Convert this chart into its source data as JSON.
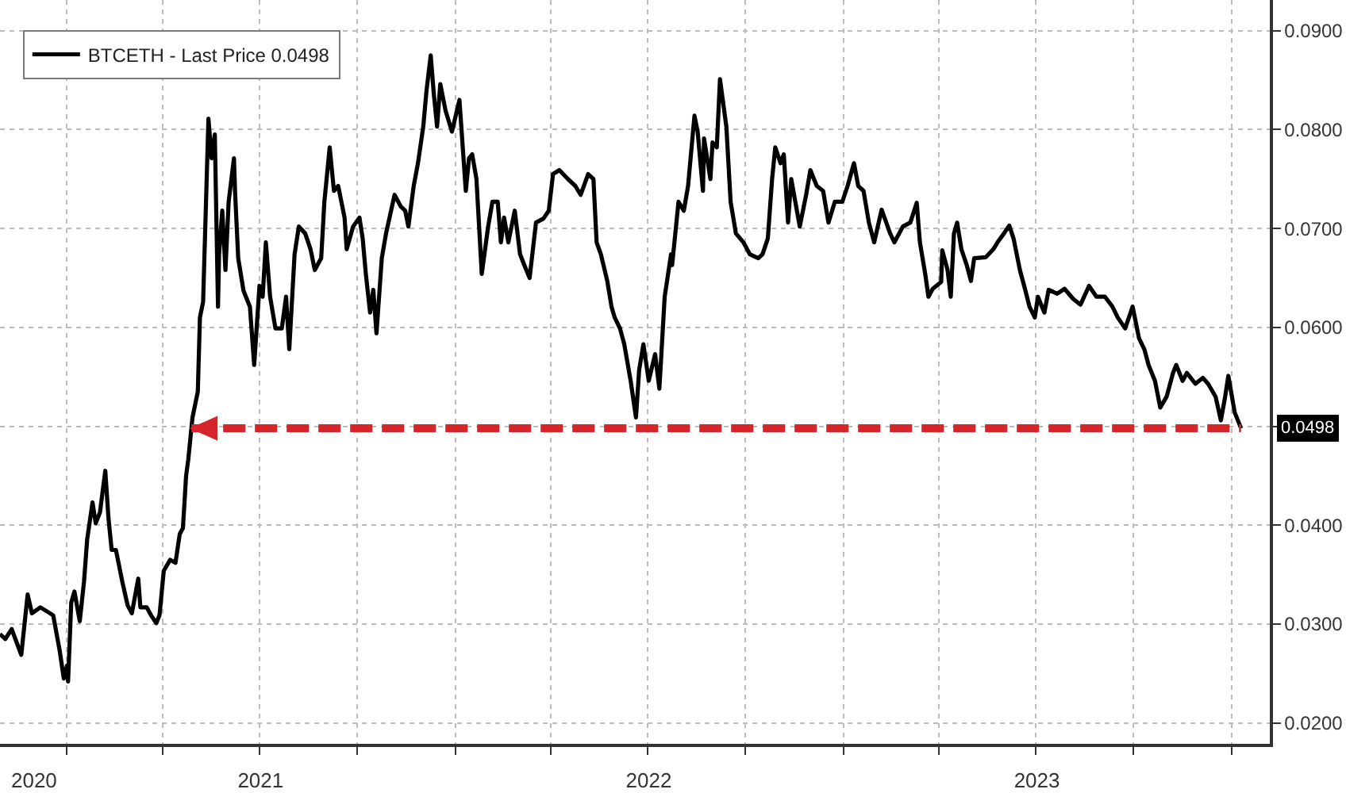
{
  "chart_data": {
    "type": "line",
    "series": [
      {
        "name": "BTCETH - Last Price 0.0498",
        "color": "#000000",
        "x": [
          "2020-10-30",
          "2020-11-04",
          "2020-11-10",
          "2020-11-19",
          "2020-11-25",
          "2020-11-29",
          "2020-12-07",
          "2020-12-19",
          "2020-12-25",
          "2020-12-29",
          "2021-01-01",
          "2021-01-02",
          "2021-01-05",
          "2021-01-08",
          "2021-01-13",
          "2021-01-17",
          "2021-01-20",
          "2021-01-25",
          "2021-01-28",
          "2021-02-01",
          "2021-02-06",
          "2021-02-09",
          "2021-02-12",
          "2021-02-16",
          "2021-02-22",
          "2021-02-27",
          "2021-03-03",
          "2021-03-09",
          "2021-03-11",
          "2021-03-17",
          "2021-03-21",
          "2021-03-26",
          "2021-03-29",
          "2021-04-02",
          "2021-04-08",
          "2021-04-13",
          "2021-04-17",
          "2021-04-20",
          "2021-04-23",
          "2021-04-25",
          "2021-04-29",
          "2021-05-04",
          "2021-05-06",
          "2021-05-09",
          "2021-05-14",
          "2021-05-17",
          "2021-05-20",
          "2021-05-23",
          "2021-05-24",
          "2021-05-27",
          "2021-05-30",
          "2021-06-02",
          "2021-06-07",
          "2021-06-08",
          "2021-06-11",
          "2021-06-16",
          "2021-06-22",
          "2021-06-26",
          "2021-07-01",
          "2021-07-04",
          "2021-07-07",
          "2021-07-11",
          "2021-07-16",
          "2021-07-22",
          "2021-07-26",
          "2021-07-29",
          "2021-08-03",
          "2021-08-07",
          "2021-08-13",
          "2021-08-18",
          "2021-08-22",
          "2021-08-28",
          "2021-08-31",
          "2021-09-05",
          "2021-09-09",
          "2021-09-13",
          "2021-09-19",
          "2021-09-21",
          "2021-09-27",
          "2021-10-03",
          "2021-10-06",
          "2021-10-09",
          "2021-10-13",
          "2021-10-16",
          "2021-10-19",
          "2021-10-24",
          "2021-10-28",
          "2021-11-05",
          "2021-11-11",
          "2021-11-15",
          "2021-11-18",
          "2021-11-23",
          "2021-11-27",
          "2021-12-02",
          "2021-12-05",
          "2021-12-09",
          "2021-12-12",
          "2021-12-15",
          "2021-12-18",
          "2021-12-23",
          "2021-12-29",
          "2022-01-05",
          "2022-01-11",
          "2022-01-14",
          "2022-01-17",
          "2022-01-21",
          "2022-01-26",
          "2022-02-01",
          "2022-02-05",
          "2022-02-10",
          "2022-02-13",
          "2022-02-16",
          "2022-02-20",
          "2022-02-26",
          "2022-03-03",
          "2022-03-07",
          "2022-03-12",
          "2022-03-18",
          "2022-03-25",
          "2022-03-30",
          "2022-04-03",
          "2022-04-09",
          "2022-04-17",
          "2022-04-24",
          "2022-04-29",
          "2022-05-06",
          "2022-05-11",
          "2022-05-14",
          "2022-05-18",
          "2022-05-24",
          "2022-05-28",
          "2022-05-31",
          "2022-06-05",
          "2022-06-09",
          "2022-06-15",
          "2022-06-20",
          "2022-06-23",
          "2022-06-27",
          "2022-07-02",
          "2022-07-08",
          "2022-07-12",
          "2022-07-17",
          "2022-07-23",
          "2022-07-24",
          "2022-07-30",
          "2022-08-04",
          "2022-08-08",
          "2022-08-14",
          "2022-08-17",
          "2022-08-22",
          "2022-08-23",
          "2022-08-29",
          "2022-08-31",
          "2022-09-04",
          "2022-09-07",
          "2022-09-13",
          "2022-09-17",
          "2022-09-22",
          "2022-09-29",
          "2022-10-05",
          "2022-10-13",
          "2022-10-17",
          "2022-10-22",
          "2022-10-26",
          "2022-10-29",
          "2022-11-03",
          "2022-11-06",
          "2022-11-10",
          "2022-11-13",
          "2022-11-21",
          "2022-11-27",
          "2022-12-01",
          "2022-12-07",
          "2022-12-13",
          "2022-12-18",
          "2022-12-24",
          "2022-12-31",
          "2023-01-05",
          "2023-01-11",
          "2023-01-15",
          "2023-01-20",
          "2023-01-25",
          "2023-01-30",
          "2023-02-06",
          "2023-02-14",
          "2023-02-18",
          "2023-02-26",
          "2023-03-05",
          "2023-03-11",
          "2023-03-14",
          "2023-03-19",
          "2023-03-22",
          "2023-03-26",
          "2023-04-03",
          "2023-04-04",
          "2023-04-09",
          "2023-04-12",
          "2023-04-15",
          "2023-04-18",
          "2023-04-22",
          "2023-04-27",
          "2023-05-01",
          "2023-05-04",
          "2023-05-15",
          "2023-05-22",
          "2023-05-26",
          "2023-06-01",
          "2023-06-06",
          "2023-06-10",
          "2023-06-16",
          "2023-06-21",
          "2023-06-25",
          "2023-06-30",
          "2023-07-03",
          "2023-07-09",
          "2023-07-13",
          "2023-07-21",
          "2023-07-28",
          "2023-08-05",
          "2023-08-12",
          "2023-08-20",
          "2023-08-27",
          "2023-09-04",
          "2023-09-11",
          "2023-09-16",
          "2023-09-23",
          "2023-09-30",
          "2023-10-06",
          "2023-10-11",
          "2023-10-15",
          "2023-10-21",
          "2023-10-26",
          "2023-11-01",
          "2023-11-07",
          "2023-11-10",
          "2023-11-16",
          "2023-11-20",
          "2023-11-28",
          "2023-12-05",
          "2023-12-10",
          "2023-12-17",
          "2023-12-22",
          "2023-12-26",
          "2023-12-29",
          "2024-01-04",
          "2024-01-10"
        ],
        "values": [
          0.029,
          0.0285,
          0.0295,
          0.0269,
          0.033,
          0.0311,
          0.0317,
          0.0309,
          0.0274,
          0.0245,
          0.0258,
          0.0242,
          0.0322,
          0.0333,
          0.0303,
          0.0343,
          0.0386,
          0.0423,
          0.0402,
          0.0413,
          0.0455,
          0.0407,
          0.0375,
          0.0375,
          0.0343,
          0.0319,
          0.0311,
          0.0346,
          0.0317,
          0.0317,
          0.0309,
          0.0301,
          0.0309,
          0.0354,
          0.0365,
          0.0362,
          0.0391,
          0.0397,
          0.045,
          0.0466,
          0.0509,
          0.0535,
          0.061,
          0.0626,
          0.0811,
          0.0771,
          0.0795,
          0.0621,
          0.0674,
          0.0718,
          0.0658,
          0.0727,
          0.0771,
          0.0738,
          0.067,
          0.0637,
          0.0621,
          0.0562,
          0.0642,
          0.0631,
          0.0686,
          0.0631,
          0.0599,
          0.0599,
          0.0631,
          0.0578,
          0.0674,
          0.0702,
          0.0695,
          0.0679,
          0.0658,
          0.067,
          0.0727,
          0.0782,
          0.0738,
          0.0743,
          0.0711,
          0.0679,
          0.0702,
          0.0711,
          0.069,
          0.0654,
          0.0615,
          0.0638,
          0.0594,
          0.067,
          0.0695,
          0.0734,
          0.0722,
          0.0718,
          0.0702,
          0.0743,
          0.0766,
          0.0803,
          0.0839,
          0.0875,
          0.0835,
          0.0803,
          0.0846,
          0.0819,
          0.0798,
          0.083,
          0.0738,
          0.0771,
          0.0775,
          0.075,
          0.0654,
          0.0702,
          0.0727,
          0.0727,
          0.0686,
          0.0711,
          0.0686,
          0.0718,
          0.0674,
          0.0663,
          0.065,
          0.0706,
          0.071,
          0.0718,
          0.0755,
          0.0759,
          0.075,
          0.0743,
          0.0734,
          0.0755,
          0.075,
          0.0686,
          0.0674,
          0.0647,
          0.0621,
          0.061,
          0.0599,
          0.0583,
          0.0546,
          0.0509,
          0.0557,
          0.0583,
          0.0546,
          0.0573,
          0.0538,
          0.0631,
          0.0674,
          0.0663,
          0.0727,
          0.0718,
          0.0743,
          0.0814,
          0.0798,
          0.0738,
          0.0791,
          0.075,
          0.0787,
          0.0782,
          0.0851,
          0.0803,
          0.0727,
          0.0695,
          0.0686,
          0.0674,
          0.067,
          0.0674,
          0.069,
          0.075,
          0.0782,
          0.0766,
          0.0775,
          0.0706,
          0.075,
          0.0702,
          0.0734,
          0.0759,
          0.0743,
          0.0738,
          0.0706,
          0.0727,
          0.0727,
          0.0743,
          0.0766,
          0.0743,
          0.0738,
          0.0706,
          0.0686,
          0.0719,
          0.0695,
          0.0686,
          0.0702,
          0.0706,
          0.0726,
          0.0686,
          0.0654,
          0.0631,
          0.0639,
          0.0646,
          0.0678,
          0.0658,
          0.0631,
          0.0695,
          0.0706,
          0.0679,
          0.0663,
          0.0647,
          0.067,
          0.0671,
          0.0679,
          0.0686,
          0.0695,
          0.0703,
          0.069,
          0.0658,
          0.0638,
          0.0621,
          0.061,
          0.0631,
          0.0615,
          0.0638,
          0.0634,
          0.0639,
          0.0629,
          0.0623,
          0.0642,
          0.0631,
          0.0631,
          0.0621,
          0.061,
          0.0599,
          0.0621,
          0.0589,
          0.0578,
          0.0562,
          0.0546,
          0.0519,
          0.053,
          0.0554,
          0.0562,
          0.0546,
          0.0554,
          0.0543,
          0.0549,
          0.0543,
          0.053,
          0.0506,
          0.053,
          0.0551,
          0.0514,
          0.0498
        ]
      }
    ],
    "xlim": [
      "2020-10-30",
      "2024-02-06"
    ],
    "ylim": [
      0.0179,
      0.0931
    ],
    "xticks": [
      {
        "value": "2020-12-01",
        "label": "2020"
      },
      {
        "value": "2021-07-02",
        "label": "2021"
      },
      {
        "value": "2022-07-02",
        "label": "2022"
      },
      {
        "value": "2023-07-02",
        "label": "2023"
      },
      {
        "value": "2021-01-01",
        "label": null
      },
      {
        "value": "2021-04-01",
        "label": null
      },
      {
        "value": "2021-07-01",
        "label": null
      },
      {
        "value": "2021-10-01",
        "label": null
      },
      {
        "value": "2022-01-01",
        "label": null
      },
      {
        "value": "2022-04-01",
        "label": null
      },
      {
        "value": "2022-07-01",
        "label": null
      },
      {
        "value": "2022-10-01",
        "label": null
      },
      {
        "value": "2023-01-01",
        "label": null
      },
      {
        "value": "2023-04-01",
        "label": null
      },
      {
        "value": "2023-07-01",
        "label": null
      },
      {
        "value": "2023-10-01",
        "label": null
      },
      {
        "value": "2024-01-01",
        "label": null
      }
    ],
    "yticks": [
      {
        "value": 0.02,
        "label": "0.0200"
      },
      {
        "value": 0.03,
        "label": "0.0300"
      },
      {
        "value": 0.04,
        "label": "0.0400"
      },
      {
        "value": 0.05,
        "label": null
      },
      {
        "value": 0.06,
        "label": "0.0600"
      },
      {
        "value": 0.07,
        "label": "0.0700"
      },
      {
        "value": 0.08,
        "label": "0.0800"
      },
      {
        "value": 0.09,
        "label": "0.0900"
      }
    ],
    "ref_lines": [
      {
        "axis": "y",
        "value": 0.0498,
        "color": "#d7262b",
        "line_style": "dashed"
      }
    ],
    "grid": true,
    "legend": "top left",
    "annotations": [
      "0.0498"
    ]
  }
}
